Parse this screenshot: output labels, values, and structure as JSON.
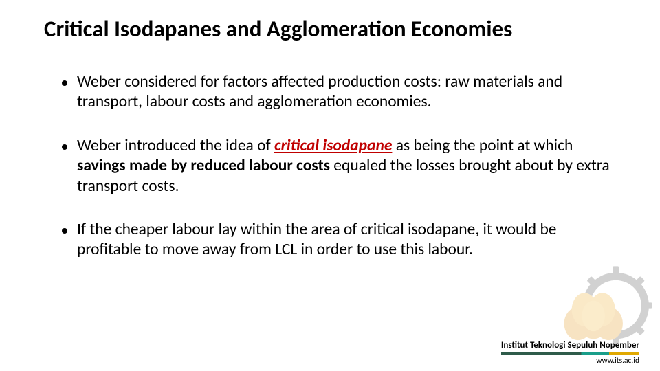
{
  "title": "Critical Isodapanes and Agglomeration Economies",
  "bullets": [
    {
      "segments": [
        {
          "t": "Weber considered for factors affected production costs: raw materials and transport, labour costs and agglomeration economies."
        }
      ]
    },
    {
      "segments": [
        {
          "t": "Weber introduced the idea of "
        },
        {
          "t": "critical isodapane",
          "cls": "emph-red emph-u"
        },
        {
          "t": " as being the point at which "
        },
        {
          "t": "savings made by reduced labour costs",
          "cls": "bold"
        },
        {
          "t": " equaled the losses brought about by extra transport costs."
        }
      ]
    },
    {
      "segments": [
        {
          "t": "If the cheaper labour lay within the area of critical isodapane, it would be profitable to move away from LCL in order to use this labour."
        }
      ]
    }
  ],
  "footer": {
    "institution": "Institut Teknologi Sepuluh Nopember",
    "url": "www.its.ac.id"
  },
  "style": {
    "title_fontsize": 33,
    "body_fontsize": 23.5,
    "emph_color": "#c00000",
    "text_color": "#000000",
    "background_color": "#ffffff",
    "bar_colors": [
      "#2e5b4a",
      "#1a9e8a",
      "#e0a800"
    ],
    "logo_colors": {
      "gear": "#6b6b6b",
      "petals": "#e8a63a",
      "center": "#f3c156"
    }
  }
}
